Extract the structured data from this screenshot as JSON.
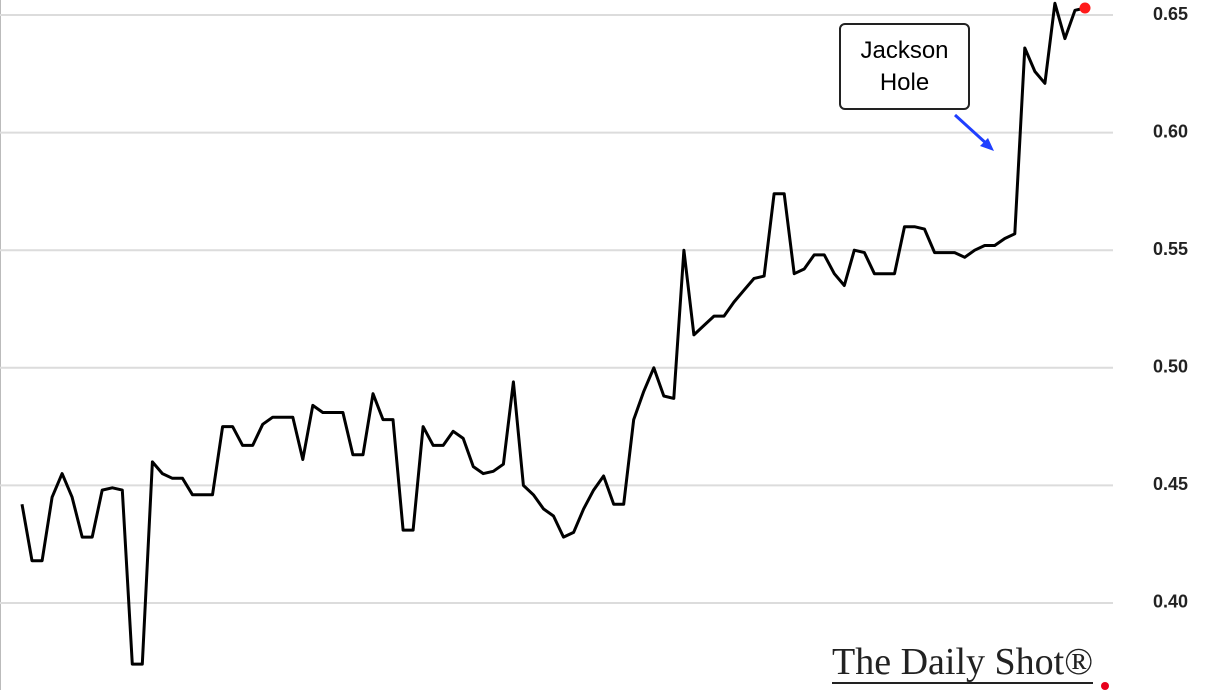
{
  "chart_data": {
    "type": "line",
    "annotation": "Jackson Hole",
    "source": "The Daily Shot®",
    "color": "#000000",
    "end_marker_color": "#ff1a1a",
    "ylim": [
      0.363,
      0.6564
    ],
    "yticks": [
      {
        "value": 0.4,
        "label": "0.40"
      },
      0.45,
      {
        "value": 0.5,
        "label": "0.50"
      },
      0.55,
      {
        "value": 0.6,
        "label": "0.60"
      },
      0.65
    ],
    "grid": true,
    "values": [
      0.442,
      0.418,
      0.418,
      0.445,
      0.455,
      0.445,
      0.428,
      0.428,
      0.448,
      0.449,
      0.448,
      0.374,
      0.374,
      0.46,
      0.455,
      0.453,
      0.453,
      0.446,
      0.446,
      0.446,
      0.475,
      0.475,
      0.467,
      0.467,
      0.476,
      0.479,
      0.479,
      0.479,
      0.461,
      0.484,
      0.481,
      0.481,
      0.481,
      0.463,
      0.463,
      0.489,
      0.478,
      0.478,
      0.431,
      0.431,
      0.475,
      0.467,
      0.467,
      0.473,
      0.47,
      0.458,
      0.455,
      0.456,
      0.459,
      0.494,
      0.45,
      0.446,
      0.44,
      0.437,
      0.428,
      0.43,
      0.44,
      0.448,
      0.454,
      0.442,
      0.442,
      0.478,
      0.49,
      0.5,
      0.488,
      0.487,
      0.55,
      0.514,
      0.518,
      0.522,
      0.522,
      0.528,
      0.533,
      0.538,
      0.539,
      0.574,
      0.574,
      0.54,
      0.542,
      0.548,
      0.548,
      0.54,
      0.535,
      0.55,
      0.549,
      0.54,
      0.54,
      0.54,
      0.56,
      0.56,
      0.559,
      0.549,
      0.549,
      0.549,
      0.547,
      0.55,
      0.552,
      0.552,
      0.555,
      0.557,
      0.636,
      0.626,
      0.621,
      0.655,
      0.64,
      0.652,
      0.653
    ]
  }
}
